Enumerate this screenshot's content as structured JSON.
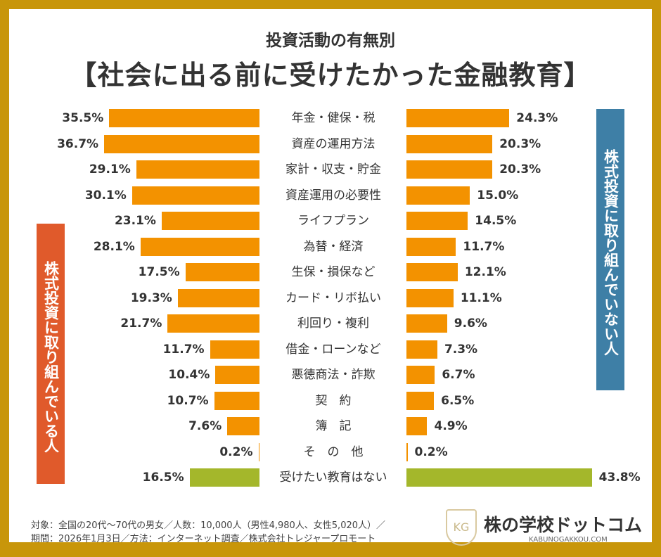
{
  "subtitle": "投資活動の有無別",
  "title": "【社会に出る前に受けたかった金融教育】",
  "left_label": "株式投資に取り組んでいる人",
  "right_label": "株式投資に取り組んでいない人",
  "colors": {
    "bar": "#F39200",
    "none_bar": "#A4B72B",
    "left_label_bg": "#E05A2B",
    "right_label_bg": "#3E7FA6",
    "frame": "#C8960A"
  },
  "chart_data": {
    "type": "bar",
    "orientation": "horizontal-butterfly",
    "categories": [
      "年金・健保・税",
      "資産の運用方法",
      "家計・収支・貯金",
      "資産運用の必要性",
      "ライフプラン",
      "為替・経済",
      "生保・損保など",
      "カード・リボ払い",
      "利回り・複利",
      "借金・ローンなど",
      "悪徳商法・詐欺",
      "契　約",
      "簿　記",
      "そ　の　他",
      "受けたい教育はない"
    ],
    "series": [
      {
        "name": "株式投資に取り組んでいる人",
        "values": [
          35.5,
          36.7,
          29.1,
          30.1,
          23.1,
          28.1,
          17.5,
          19.3,
          21.7,
          11.7,
          10.4,
          10.7,
          7.6,
          0.2,
          16.5
        ]
      },
      {
        "name": "株式投資に取り組んでいない人",
        "values": [
          24.3,
          20.3,
          20.3,
          15.0,
          14.5,
          11.7,
          12.1,
          11.1,
          9.6,
          7.3,
          6.7,
          6.5,
          4.9,
          0.2,
          43.8
        ]
      }
    ],
    "unit": "%"
  },
  "footer": {
    "line1": "対象：全国の20代〜70代の男女／人数：10,000人（男性4,980人、女性5,020人）／",
    "line2": "期間：2026年1月3日／方法：インターネット調査／株式会社トレジャープロモート"
  },
  "brand": {
    "name": "株の学校ドットコム",
    "url": "KABUNOGAKKOU.COM",
    "logo_text": "KG"
  }
}
